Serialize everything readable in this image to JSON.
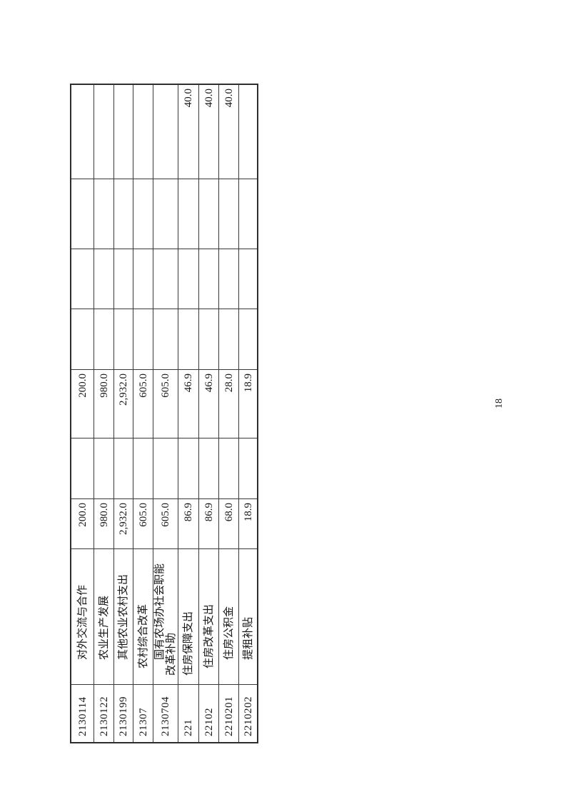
{
  "document": {
    "page_number": "18",
    "table": {
      "rows": [
        {
          "code": "2130114",
          "name": "对外交流与合作",
          "indent_level": 3,
          "cells": [
            "200.0",
            "",
            "200.0",
            "",
            "",
            "",
            ""
          ]
        },
        {
          "code": "2130122",
          "name": "农业生产发展",
          "indent_level": 3,
          "cells": [
            "980.0",
            "",
            "980.0",
            "",
            "",
            "",
            ""
          ]
        },
        {
          "code": "2130199",
          "name": "其他农业农村支出",
          "indent_level": 3,
          "cells": [
            "2,932.0",
            "",
            "2,932.0",
            "",
            "",
            "",
            ""
          ]
        },
        {
          "code": "21307",
          "name": "农村综合改革",
          "indent_level": 2,
          "cells": [
            "605.0",
            "",
            "605.0",
            "",
            "",
            "",
            ""
          ]
        },
        {
          "code": "2130704",
          "name": "国有农场办社会职能\n改革补助",
          "indent_level": 3,
          "cells": [
            "605.0",
            "",
            "605.0",
            "",
            "",
            "",
            ""
          ]
        },
        {
          "code": "221",
          "name": "住房保障支出",
          "indent_level": 1,
          "cells": [
            "86.9",
            "",
            "46.9",
            "",
            "",
            "",
            "40.0"
          ]
        },
        {
          "code": "22102",
          "name": "住房改革支出",
          "indent_level": 2,
          "cells": [
            "86.9",
            "",
            "46.9",
            "",
            "",
            "",
            "40.0"
          ]
        },
        {
          "code": "2210201",
          "name": "住房公积金",
          "indent_level": 3,
          "cells": [
            "68.0",
            "",
            "28.0",
            "",
            "",
            "",
            "40.0"
          ]
        },
        {
          "code": "2210202",
          "name": "提租补贴",
          "indent_level": 3,
          "cells": [
            "18.9",
            "",
            "18.9",
            "",
            "",
            "",
            ""
          ]
        }
      ]
    }
  }
}
